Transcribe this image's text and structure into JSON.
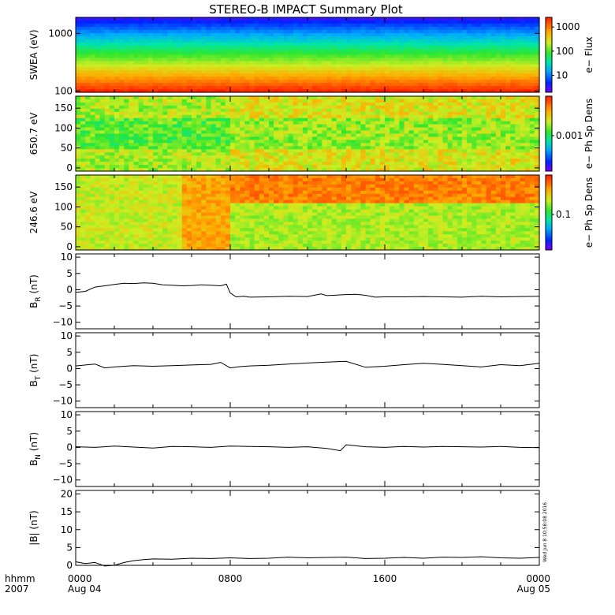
{
  "chart_data": {
    "type": "multi-panel time series",
    "title": "STEREO-B IMPACT Summary Plot",
    "x_axis": {
      "tick_labels": [
        "0000",
        "0800",
        "1600",
        "0000"
      ],
      "tick_hours": [
        0,
        8,
        16,
        24
      ],
      "date_labels": [
        "Aug 04",
        "",
        "",
        "Aug 05"
      ],
      "corner_labels": [
        "hhmm",
        "2007"
      ],
      "range_hours": [
        0,
        24
      ]
    },
    "panels": [
      {
        "id": "swea",
        "type": "heatmap",
        "ylabel": "SWEA (eV)",
        "y_scale": "log",
        "y_ticks": [
          "1000",
          "100"
        ],
        "y_tick_values": [
          1000,
          100
        ],
        "ylim": [
          95,
          1900
        ],
        "colorbar_label": "e− Flux",
        "colorbar_ticks": [
          "1000",
          "100",
          "10"
        ],
        "colorbar_tick_values": [
          1000,
          100,
          10
        ],
        "colorbar_range": [
          2,
          2500
        ],
        "colorbar_scale": "log"
      },
      {
        "id": "pad650",
        "type": "heatmap",
        "ylabel": "650.7 eV",
        "y_ticks": [
          "150",
          "100",
          "50",
          "0"
        ],
        "y_tick_values": [
          150,
          100,
          50,
          0
        ],
        "ylim": [
          -8,
          180
        ],
        "colorbar_label": "e− Ph Sp Dens",
        "colorbar_ticks": [
          "0.001"
        ],
        "colorbar_tick_values": [
          0.001
        ],
        "colorbar_range": [
          0.0002,
          0.006
        ],
        "colorbar_scale": "log"
      },
      {
        "id": "pad246",
        "type": "heatmap",
        "ylabel": "246.6 eV",
        "y_ticks": [
          "150",
          "100",
          "50",
          "0"
        ],
        "y_tick_values": [
          150,
          100,
          50,
          0
        ],
        "ylim": [
          -8,
          180
        ],
        "colorbar_label": "e− Ph Sp Dens",
        "colorbar_ticks": [
          "0.1"
        ],
        "colorbar_tick_values": [
          0.1
        ],
        "colorbar_range": [
          0.02,
          0.6
        ],
        "colorbar_scale": "log"
      },
      {
        "id": "br",
        "type": "line",
        "ylabel_main": "B",
        "ylabel_sub": "R",
        "ylabel_unit": "(nT)",
        "y_ticks": [
          "10",
          "5",
          "0",
          "−5",
          "−10"
        ],
        "y_tick_values": [
          10,
          5,
          0,
          -5,
          -10
        ],
        "ylim": [
          -12,
          11
        ],
        "series": [
          {
            "x_hours": [
              0,
              0.5,
              1,
              1.5,
              2,
              2.5,
              3,
              3.5,
              4,
              4.5,
              5,
              5.5,
              6,
              6.5,
              7,
              7.5,
              7.8,
              8,
              8.3,
              8.7,
              9,
              10,
              11,
              12,
              12.7,
              13,
              14,
              14.5,
              15,
              15.5,
              16,
              17,
              18,
              19,
              20,
              21,
              22,
              23,
              24
            ],
            "y": [
              -0.8,
              -0.5,
              0.8,
              1.2,
              1.6,
              2.0,
              1.9,
              2.1,
              2.0,
              1.5,
              1.4,
              1.2,
              1.3,
              1.5,
              1.4,
              1.2,
              1.7,
              -1.0,
              -2.2,
              -2.0,
              -2.3,
              -2.2,
              -2.0,
              -2.1,
              -1.3,
              -1.8,
              -1.5,
              -1.4,
              -1.7,
              -2.3,
              -2.2,
              -2.2,
              -2.1,
              -2.2,
              -2.3,
              -2.0,
              -2.2,
              -2.1,
              -2.0
            ]
          }
        ]
      },
      {
        "id": "bt",
        "type": "line",
        "ylabel_main": "B",
        "ylabel_sub": "T",
        "ylabel_unit": "(nT)",
        "y_ticks": [
          "10",
          "5",
          "0",
          "−5",
          "−10"
        ],
        "y_tick_values": [
          10,
          5,
          0,
          -5,
          -10
        ],
        "ylim": [
          -12,
          11
        ],
        "series": [
          {
            "x_hours": [
              0,
              0.5,
              1,
              1.5,
              2,
              3,
              4,
              5,
              6,
              7,
              7.5,
              8,
              8.5,
              9,
              10,
              11,
              12,
              13,
              14,
              15,
              16,
              17,
              18,
              19,
              20,
              21,
              22,
              23,
              24
            ],
            "y": [
              0.8,
              1.1,
              1.4,
              0.2,
              0.5,
              0.9,
              0.7,
              0.9,
              1.1,
              1.3,
              1.9,
              0.2,
              0.6,
              0.8,
              1.0,
              1.4,
              1.7,
              2.0,
              2.2,
              0.4,
              0.7,
              1.2,
              1.6,
              1.3,
              0.9,
              0.5,
              1.2,
              0.9,
              1.6
            ]
          }
        ]
      },
      {
        "id": "bn",
        "type": "line",
        "ylabel_main": "B",
        "ylabel_sub": "N",
        "ylabel_unit": "(nT)",
        "y_ticks": [
          "10",
          "5",
          "0",
          "−5",
          "−10"
        ],
        "y_tick_values": [
          10,
          5,
          0,
          -5,
          -10
        ],
        "ylim": [
          -12,
          11
        ],
        "series": [
          {
            "x_hours": [
              0,
              1,
              2,
              3,
              4,
              5,
              6,
              7,
              8,
              9,
              10,
              11,
              12,
              13,
              13.7,
              14,
              15,
              16,
              17,
              18,
              19,
              20,
              21,
              22,
              23,
              24
            ],
            "y": [
              0.2,
              0.0,
              0.4,
              0.1,
              -0.2,
              0.3,
              0.2,
              0.0,
              0.4,
              0.3,
              0.2,
              0.0,
              0.2,
              -0.3,
              -1.0,
              0.8,
              0.2,
              0.0,
              0.3,
              0.1,
              0.3,
              0.2,
              0.1,
              0.3,
              0.0,
              -0.1
            ]
          }
        ]
      },
      {
        "id": "bmag",
        "type": "line",
        "ylabel_main": "|B|",
        "ylabel_sub": "",
        "ylabel_unit": "(nT)",
        "y_ticks": [
          "20",
          "15",
          "10",
          "5",
          "0"
        ],
        "y_tick_values": [
          20,
          15,
          10,
          5,
          0
        ],
        "ylim": [
          0,
          21
        ],
        "timestamp": "Wed Jun  8 10:58:08 2016",
        "series": [
          {
            "x_hours": [
              0,
              0.5,
              1,
              1.5,
              2,
              2.5,
              3,
              3.5,
              4,
              5,
              6,
              7,
              8,
              9,
              10,
              11,
              12,
              13,
              14,
              15,
              16,
              17,
              18,
              19,
              20,
              21,
              22,
              23,
              24
            ],
            "y": [
              1.0,
              0.5,
              0.8,
              -0.2,
              0.0,
              0.8,
              1.3,
              1.6,
              1.8,
              1.7,
              2.0,
              1.9,
              2.1,
              1.9,
              2.0,
              2.3,
              2.1,
              2.2,
              2.3,
              1.9,
              2.0,
              2.2,
              2.0,
              2.3,
              2.2,
              2.4,
              2.1,
              2.0,
              2.2
            ]
          }
        ]
      }
    ]
  }
}
